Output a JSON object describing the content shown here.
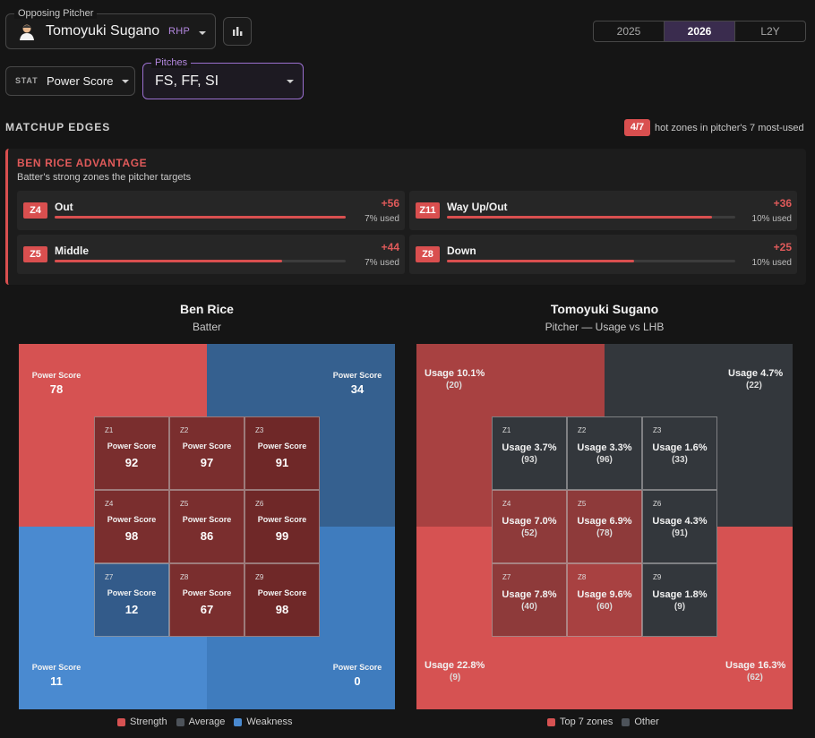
{
  "header": {
    "pitcher_label": "Opposing Pitcher",
    "pitcher_name": "Tomoyuki Sugano",
    "pitcher_hand": "RHP",
    "seasons": [
      "2025",
      "2026",
      "L2Y"
    ],
    "active_season": "2026"
  },
  "filters": {
    "stat_small": "STAT",
    "stat_value": "Power Score",
    "pitches_label": "Pitches",
    "pitches_value": "FS, FF, SI"
  },
  "matchup": {
    "title": "MATCHUP EDGES",
    "hot_badge": "4/7",
    "hot_text": "hot zones in pitcher's 7 most-used"
  },
  "advantage": {
    "title": "BEN RICE ADVANTAGE",
    "subtitle": "Batter's strong zones the pitcher targets",
    "edges": [
      {
        "zone": "Z4",
        "name": "Out",
        "delta": "+56",
        "used": "7% used",
        "fill": 1.0
      },
      {
        "zone": "Z11",
        "name": "Way Up/Out",
        "delta": "+36",
        "used": "10% used",
        "fill": 0.92
      },
      {
        "zone": "Z5",
        "name": "Middle",
        "delta": "+44",
        "used": "7% used",
        "fill": 0.78
      },
      {
        "zone": "Z8",
        "name": "Down",
        "delta": "+25",
        "used": "10% used",
        "fill": 0.65
      }
    ]
  },
  "batter_plot": {
    "title": "Ben Rice",
    "subtitle": "Batter",
    "quad_label": "Power Score",
    "outer": [
      {
        "value": "78",
        "category": "strength"
      },
      {
        "value": "34",
        "category": "weakness"
      },
      {
        "value": "11",
        "category": "weakness"
      },
      {
        "value": "0",
        "category": "weakness"
      }
    ],
    "cells": [
      {
        "zone": "Z1",
        "value": "92",
        "category": "strength"
      },
      {
        "zone": "Z2",
        "value": "97",
        "category": "strength"
      },
      {
        "zone": "Z3",
        "value": "91",
        "category": "strength"
      },
      {
        "zone": "Z4",
        "value": "98",
        "category": "strength"
      },
      {
        "zone": "Z5",
        "value": "86",
        "category": "strength"
      },
      {
        "zone": "Z6",
        "value": "99",
        "category": "strength"
      },
      {
        "zone": "Z7",
        "value": "12",
        "category": "weakness"
      },
      {
        "zone": "Z8",
        "value": "67",
        "category": "strength"
      },
      {
        "zone": "Z9",
        "value": "98",
        "category": "strength"
      }
    ],
    "legend": [
      "Strength",
      "Average",
      "Weakness"
    ]
  },
  "pitcher_plot": {
    "title": "Tomoyuki Sugano",
    "subtitle": "Pitcher — Usage vs LHB",
    "outer": [
      {
        "usage": "Usage 10.1%",
        "count": "(20)",
        "category": "top"
      },
      {
        "usage": "Usage 4.7%",
        "count": "(22)",
        "category": "other"
      },
      {
        "usage": "Usage 22.8%",
        "count": "(9)",
        "category": "top"
      },
      {
        "usage": "Usage 16.3%",
        "count": "(62)",
        "category": "top"
      }
    ],
    "cells": [
      {
        "zone": "Z1",
        "usage": "Usage 3.7%",
        "count": "(93)",
        "category": "other"
      },
      {
        "zone": "Z2",
        "usage": "Usage 3.3%",
        "count": "(96)",
        "category": "other"
      },
      {
        "zone": "Z3",
        "usage": "Usage 1.6%",
        "count": "(33)",
        "category": "other"
      },
      {
        "zone": "Z4",
        "usage": "Usage 7.0%",
        "count": "(52)",
        "category": "top"
      },
      {
        "zone": "Z5",
        "usage": "Usage 6.9%",
        "count": "(78)",
        "category": "top"
      },
      {
        "zone": "Z6",
        "usage": "Usage 4.3%",
        "count": "(91)",
        "category": "other"
      },
      {
        "zone": "Z7",
        "usage": "Usage 7.8%",
        "count": "(40)",
        "category": "top"
      },
      {
        "zone": "Z8",
        "usage": "Usage 9.6%",
        "count": "(60)",
        "category": "top"
      },
      {
        "zone": "Z9",
        "usage": "Usage 1.8%",
        "count": "(9)",
        "category": "other"
      }
    ],
    "legend": [
      "Top 7 zones",
      "Other"
    ]
  },
  "colors": {
    "strength_outer": "#d65252",
    "strength_inner": "#7a2e2e",
    "weakness_outer_a": "#35608f",
    "weakness_outer_b": "#4a8ad0",
    "weakness_inner": "#335b8a",
    "average": "#3b3f45",
    "top_outer": "#a84141",
    "top_outer_b": "#d65252",
    "top_inner": "#8e3a3a",
    "other": "#33373c",
    "accent": "#d94f4f",
    "brand_purple": "#9a6fcf"
  }
}
